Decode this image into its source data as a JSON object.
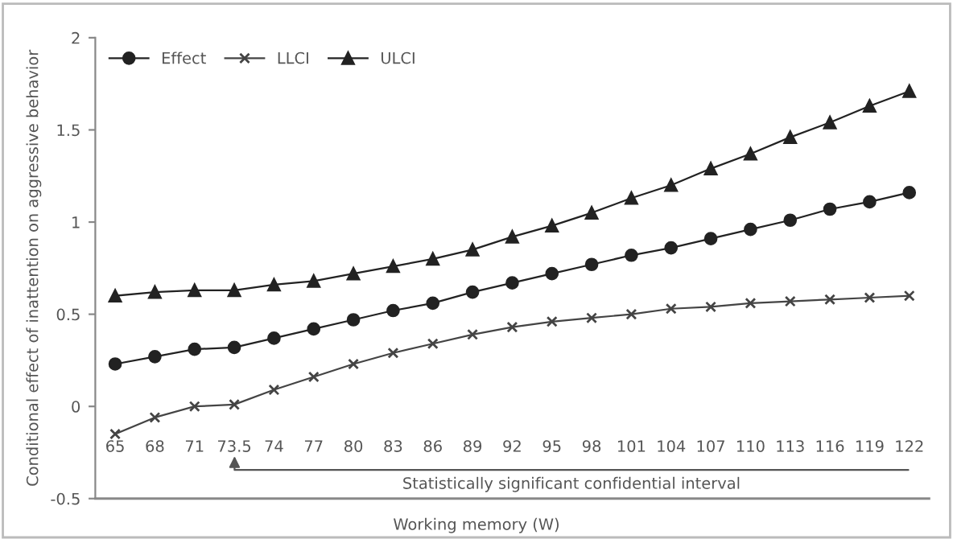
{
  "chart_data": {
    "type": "line",
    "xlabel": "Working memory (W)",
    "ylabel": "Conditional effect of inattention on aggressive behavior",
    "categories": [
      "65",
      "68",
      "71",
      "73.5",
      "74",
      "77",
      "80",
      "83",
      "86",
      "89",
      "92",
      "95",
      "98",
      "101",
      "104",
      "107",
      "110",
      "113",
      "116",
      "119",
      "122"
    ],
    "series": [
      {
        "name": "Effect",
        "color": "#222222",
        "marker": "circle",
        "values": [
          0.23,
          0.27,
          0.31,
          0.32,
          0.37,
          0.42,
          0.47,
          0.52,
          0.56,
          0.62,
          0.67,
          0.72,
          0.77,
          0.82,
          0.86,
          0.91,
          0.96,
          1.01,
          1.07,
          1.11,
          1.16
        ]
      },
      {
        "name": "LLCI",
        "color": "#444444",
        "marker": "cross",
        "values": [
          -0.15,
          -0.06,
          0.0,
          0.01,
          0.09,
          0.16,
          0.23,
          0.29,
          0.34,
          0.39,
          0.43,
          0.46,
          0.48,
          0.5,
          0.53,
          0.54,
          0.56,
          0.57,
          0.58,
          0.59,
          0.6
        ]
      },
      {
        "name": "ULCI",
        "color": "#222222",
        "marker": "triangle",
        "values": [
          0.6,
          0.62,
          0.63,
          0.63,
          0.66,
          0.68,
          0.72,
          0.76,
          0.8,
          0.85,
          0.92,
          0.98,
          1.05,
          1.13,
          1.2,
          1.29,
          1.37,
          1.46,
          1.54,
          1.63,
          1.71
        ]
      }
    ],
    "ylim": [
      -0.5,
      2
    ],
    "yticks": [
      -0.5,
      0,
      0.5,
      1,
      1.5,
      2
    ],
    "annotations": [
      "Statistically significant confidential interval"
    ],
    "legend": "top left",
    "grid": false
  }
}
